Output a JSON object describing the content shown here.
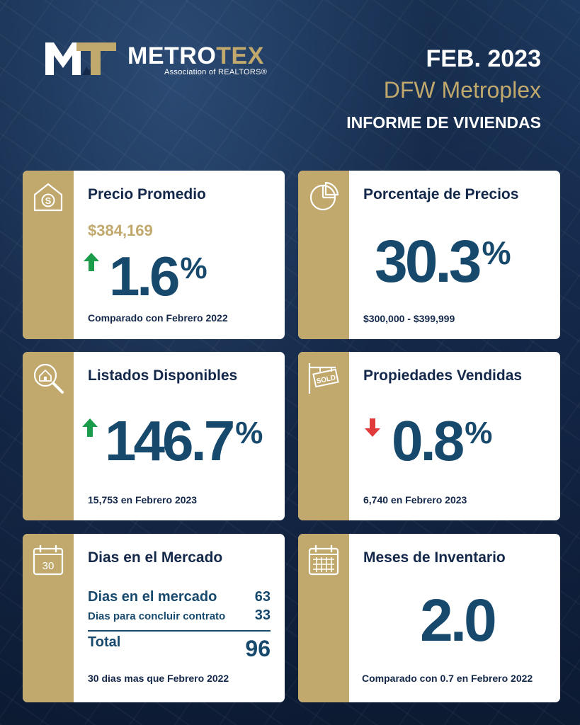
{
  "header": {
    "logo": {
      "brand_white": "METRO",
      "brand_gold": "TEX",
      "subtitle": "Association of REALTORS®"
    },
    "period": "FEB. 2023",
    "region": "DFW Metroplex",
    "report_title": "INFORME DE VIVIENDAS"
  },
  "colors": {
    "navy": "#14284a",
    "gold": "#c1a96e",
    "value_blue": "#17496d",
    "up_green": "#1a9c4a",
    "down_red": "#e03a3a"
  },
  "cards": {
    "avg_price": {
      "icon": "house-dollar-icon",
      "title": "Precio Promedio",
      "price": "$384,169",
      "trend": "up",
      "change_value": "1.6",
      "change_unit": "%",
      "note": "Comparado con Febrero 2022"
    },
    "price_share": {
      "icon": "pie-chart-icon",
      "title": "Porcentaje de Precios",
      "value": "30.3",
      "unit": "%",
      "note": "$300,000 - $399,999"
    },
    "listings": {
      "icon": "house-search-icon",
      "title": "Listados Disponibles",
      "trend": "up",
      "change_value": "146.7",
      "change_unit": "%",
      "note": "15,753 en Febrero 2023"
    },
    "sold": {
      "icon": "sold-sign-icon",
      "sign_text": "SOLD",
      "title": "Propiedades Vendidas",
      "trend": "down",
      "change_value": "0.8",
      "change_unit": "%",
      "note": "6,740 en Febrero 2023"
    },
    "days_on_market": {
      "icon": "calendar-30-icon",
      "icon_text": "30",
      "title": "Dias en el Mercado",
      "rows": [
        {
          "label": "Dias en el mercado",
          "value": "63"
        },
        {
          "label": "Dias para concluir contrato",
          "value": "33"
        }
      ],
      "total_label": "Total",
      "total_value": "96",
      "note": "30 dias mas que Febrero 2022"
    },
    "inventory": {
      "icon": "calendar-grid-icon",
      "title": "Meses de Inventario",
      "value": "2.0",
      "note": "Comparado con 0.7 en Febrero 2022"
    }
  }
}
